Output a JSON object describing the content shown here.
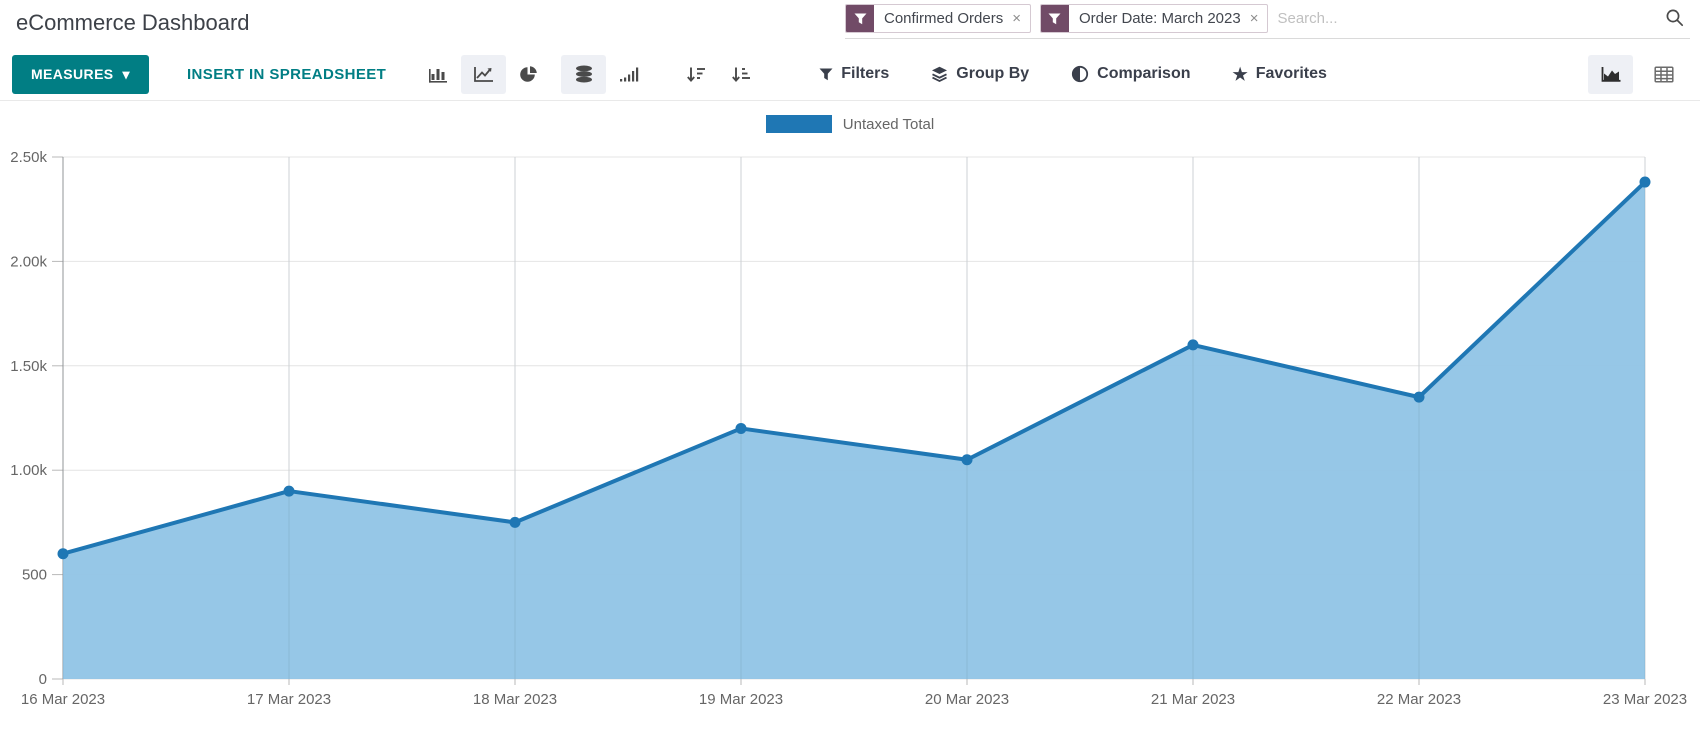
{
  "header": {
    "title": "eCommerce Dashboard"
  },
  "search": {
    "placeholder": "Search...",
    "facets": [
      {
        "label": "Confirmed Orders",
        "remove_glyph": "×"
      },
      {
        "label": "Order Date: March 2023",
        "remove_glyph": "×"
      }
    ]
  },
  "toolbar": {
    "measures_label": "MEASURES",
    "insert_label": "INSERT IN SPREADSHEET",
    "filters_label": "Filters",
    "groupby_label": "Group By",
    "comparison_label": "Comparison",
    "favorites_label": "Favorites"
  },
  "icons": {
    "measures_caret": "▾",
    "favorites_star": "★"
  },
  "colors": {
    "accent_teal": "#017E84",
    "facet_plum": "#714B67",
    "line_blue": "#1F77B4",
    "area_fill": "#92C5E6",
    "grid": "#e4e4e4",
    "axis": "#9b9b9b",
    "tick": "#b9b9b9",
    "tick_text": "#666666"
  },
  "chart_data": {
    "type": "area",
    "title": "",
    "legend": [
      "Untaxed Total"
    ],
    "legend_position": "top",
    "x": [
      "16 Mar 2023",
      "17 Mar 2023",
      "18 Mar 2023",
      "19 Mar 2023",
      "20 Mar 2023",
      "21 Mar 2023",
      "22 Mar 2023",
      "23 Mar 2023"
    ],
    "series": [
      {
        "name": "Untaxed Total",
        "values": [
          600,
          900,
          750,
          1200,
          1050,
          1600,
          1350,
          2380
        ]
      }
    ],
    "xlabel": "",
    "ylabel": "",
    "ylim": [
      0,
      2500
    ],
    "ytick_values": [
      0,
      500,
      1000,
      1500,
      2000,
      2500
    ],
    "ytick_labels": [
      "0",
      "500",
      "1.00k",
      "1.50k",
      "2.00k",
      "2.50k"
    ],
    "grid": true,
    "marker_radius": 5.5,
    "line_width": 4
  }
}
